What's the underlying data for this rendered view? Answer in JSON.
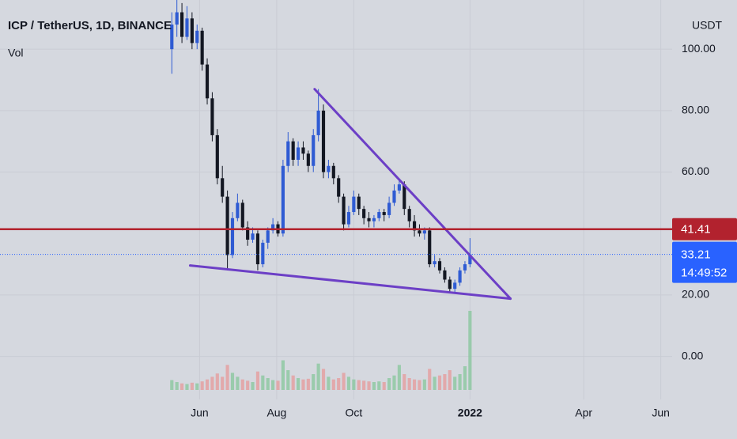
{
  "chart_data": {
    "type": "candlestick",
    "title": "ICP / TetherUS, 1D, BINANCE",
    "volume_label": "Vol",
    "y_axis_label": "USDT",
    "x": [
      130,
      134,
      138,
      142,
      146,
      150,
      154,
      158,
      162,
      166,
      170,
      174,
      178,
      182,
      186,
      190,
      194,
      198,
      202,
      206,
      210,
      214,
      218,
      222,
      226,
      230,
      234,
      238,
      242,
      246,
      250,
      254,
      258,
      262,
      266,
      270,
      274,
      278,
      282,
      286,
      290,
      294,
      298,
      302,
      306,
      310,
      314,
      318,
      322,
      326,
      330,
      334,
      338,
      342,
      346,
      350,
      354,
      358,
      362,
      366
    ],
    "open": [
      100,
      108,
      112,
      104,
      110,
      102,
      106,
      95,
      84,
      72,
      58,
      52,
      33,
      45,
      50,
      42,
      38,
      40,
      30,
      37,
      41,
      43,
      40,
      62,
      70,
      64,
      68,
      66,
      62,
      72,
      80,
      60,
      62,
      58,
      52,
      43,
      47,
      52,
      48,
      45,
      44,
      45,
      47,
      46,
      50,
      54,
      56,
      48,
      44,
      41,
      40,
      41,
      30,
      31,
      28,
      25,
      22,
      24,
      28,
      30
    ],
    "high": [
      112,
      116,
      115,
      114,
      112,
      108,
      107,
      97,
      86,
      74,
      62,
      54,
      47,
      53,
      51,
      44,
      42,
      41,
      38,
      42,
      45,
      44,
      64,
      73,
      71,
      70,
      70,
      67,
      74,
      87,
      82,
      64,
      63,
      59,
      53,
      49,
      54,
      53,
      49,
      47,
      46,
      48,
      48,
      52,
      56,
      58,
      57,
      49,
      46,
      43,
      42,
      42,
      33,
      32,
      29,
      26,
      25,
      29,
      31,
      38.5
    ],
    "low": [
      92,
      104,
      102,
      103,
      100,
      100,
      93,
      82,
      70,
      56,
      50,
      28,
      32,
      44,
      41,
      36,
      37,
      28,
      29,
      35,
      40,
      39,
      39,
      60,
      62,
      62,
      64,
      60,
      60,
      70,
      58,
      58,
      56,
      50,
      41,
      42,
      46,
      46,
      43,
      42,
      42,
      44,
      44,
      45,
      49,
      53,
      46,
      42,
      39,
      39,
      38,
      29,
      29,
      27,
      24,
      20.5,
      21,
      23,
      27,
      29
    ],
    "close": [
      108,
      112,
      104,
      110,
      102,
      106,
      95,
      84,
      72,
      58,
      52,
      33,
      45,
      50,
      42,
      38,
      40,
      30,
      37,
      41,
      43,
      40,
      62,
      70,
      64,
      68,
      66,
      62,
      72,
      80,
      60,
      62,
      58,
      52,
      43,
      47,
      52,
      48,
      45,
      44,
      45,
      47,
      46,
      50,
      54,
      56,
      48,
      44,
      41,
      40,
      41,
      30,
      31,
      28,
      25,
      22,
      24,
      28,
      30,
      33.21
    ],
    "volume": [
      1.5,
      1.2,
      1.0,
      0.9,
      1.1,
      1.0,
      1.3,
      1.6,
      2.0,
      2.5,
      2.0,
      3.8,
      2.6,
      2.0,
      1.6,
      1.4,
      1.2,
      2.8,
      2.2,
      1.8,
      1.5,
      1.4,
      4.5,
      3.0,
      2.2,
      1.8,
      1.6,
      1.7,
      2.4,
      4.0,
      3.2,
      2.0,
      1.6,
      1.8,
      2.6,
      2.0,
      1.6,
      1.5,
      1.4,
      1.3,
      1.2,
      1.3,
      1.2,
      1.8,
      2.2,
      3.8,
      2.4,
      1.8,
      1.6,
      1.5,
      1.6,
      3.2,
      2.0,
      2.2,
      2.4,
      3.0,
      2.0,
      2.4,
      3.6,
      12.0
    ],
    "up_color": "#2f5bd3",
    "down_color": "#131722",
    "volume_up_color": "#86c79b",
    "volume_down_color": "#e59a9a",
    "xlim": [
      -6,
      526
    ],
    "xticks": [
      {
        "value": 152,
        "label": "Jun"
      },
      {
        "value": 213,
        "label": "Aug"
      },
      {
        "value": 274,
        "label": "Oct"
      },
      {
        "value": 366,
        "label": "2022"
      },
      {
        "value": 456,
        "label": "Apr"
      },
      {
        "value": 517,
        "label": "Jun"
      }
    ],
    "ylim": [
      -14,
      116
    ],
    "yticks": [
      {
        "value": 0,
        "label": "0.00"
      },
      {
        "value": 20,
        "label": "20.00"
      },
      {
        "value": 60,
        "label": "60.00"
      },
      {
        "value": 80,
        "label": "80.00"
      },
      {
        "value": 100,
        "label": "100.00"
      }
    ],
    "grid": true,
    "horizontal_line": {
      "value": 41.41,
      "color": "#b2222e"
    },
    "last_price": {
      "value": 33.21,
      "countdown": "14:49:52",
      "color": "#2962ff"
    },
    "trendlines": [
      {
        "x": [
          243,
          398
        ],
        "y": [
          87,
          18.8
        ]
      },
      {
        "x": [
          144.5,
          398
        ],
        "y": [
          29.6,
          18.8
        ]
      }
    ],
    "trendline_color": "#6c3fc6"
  }
}
